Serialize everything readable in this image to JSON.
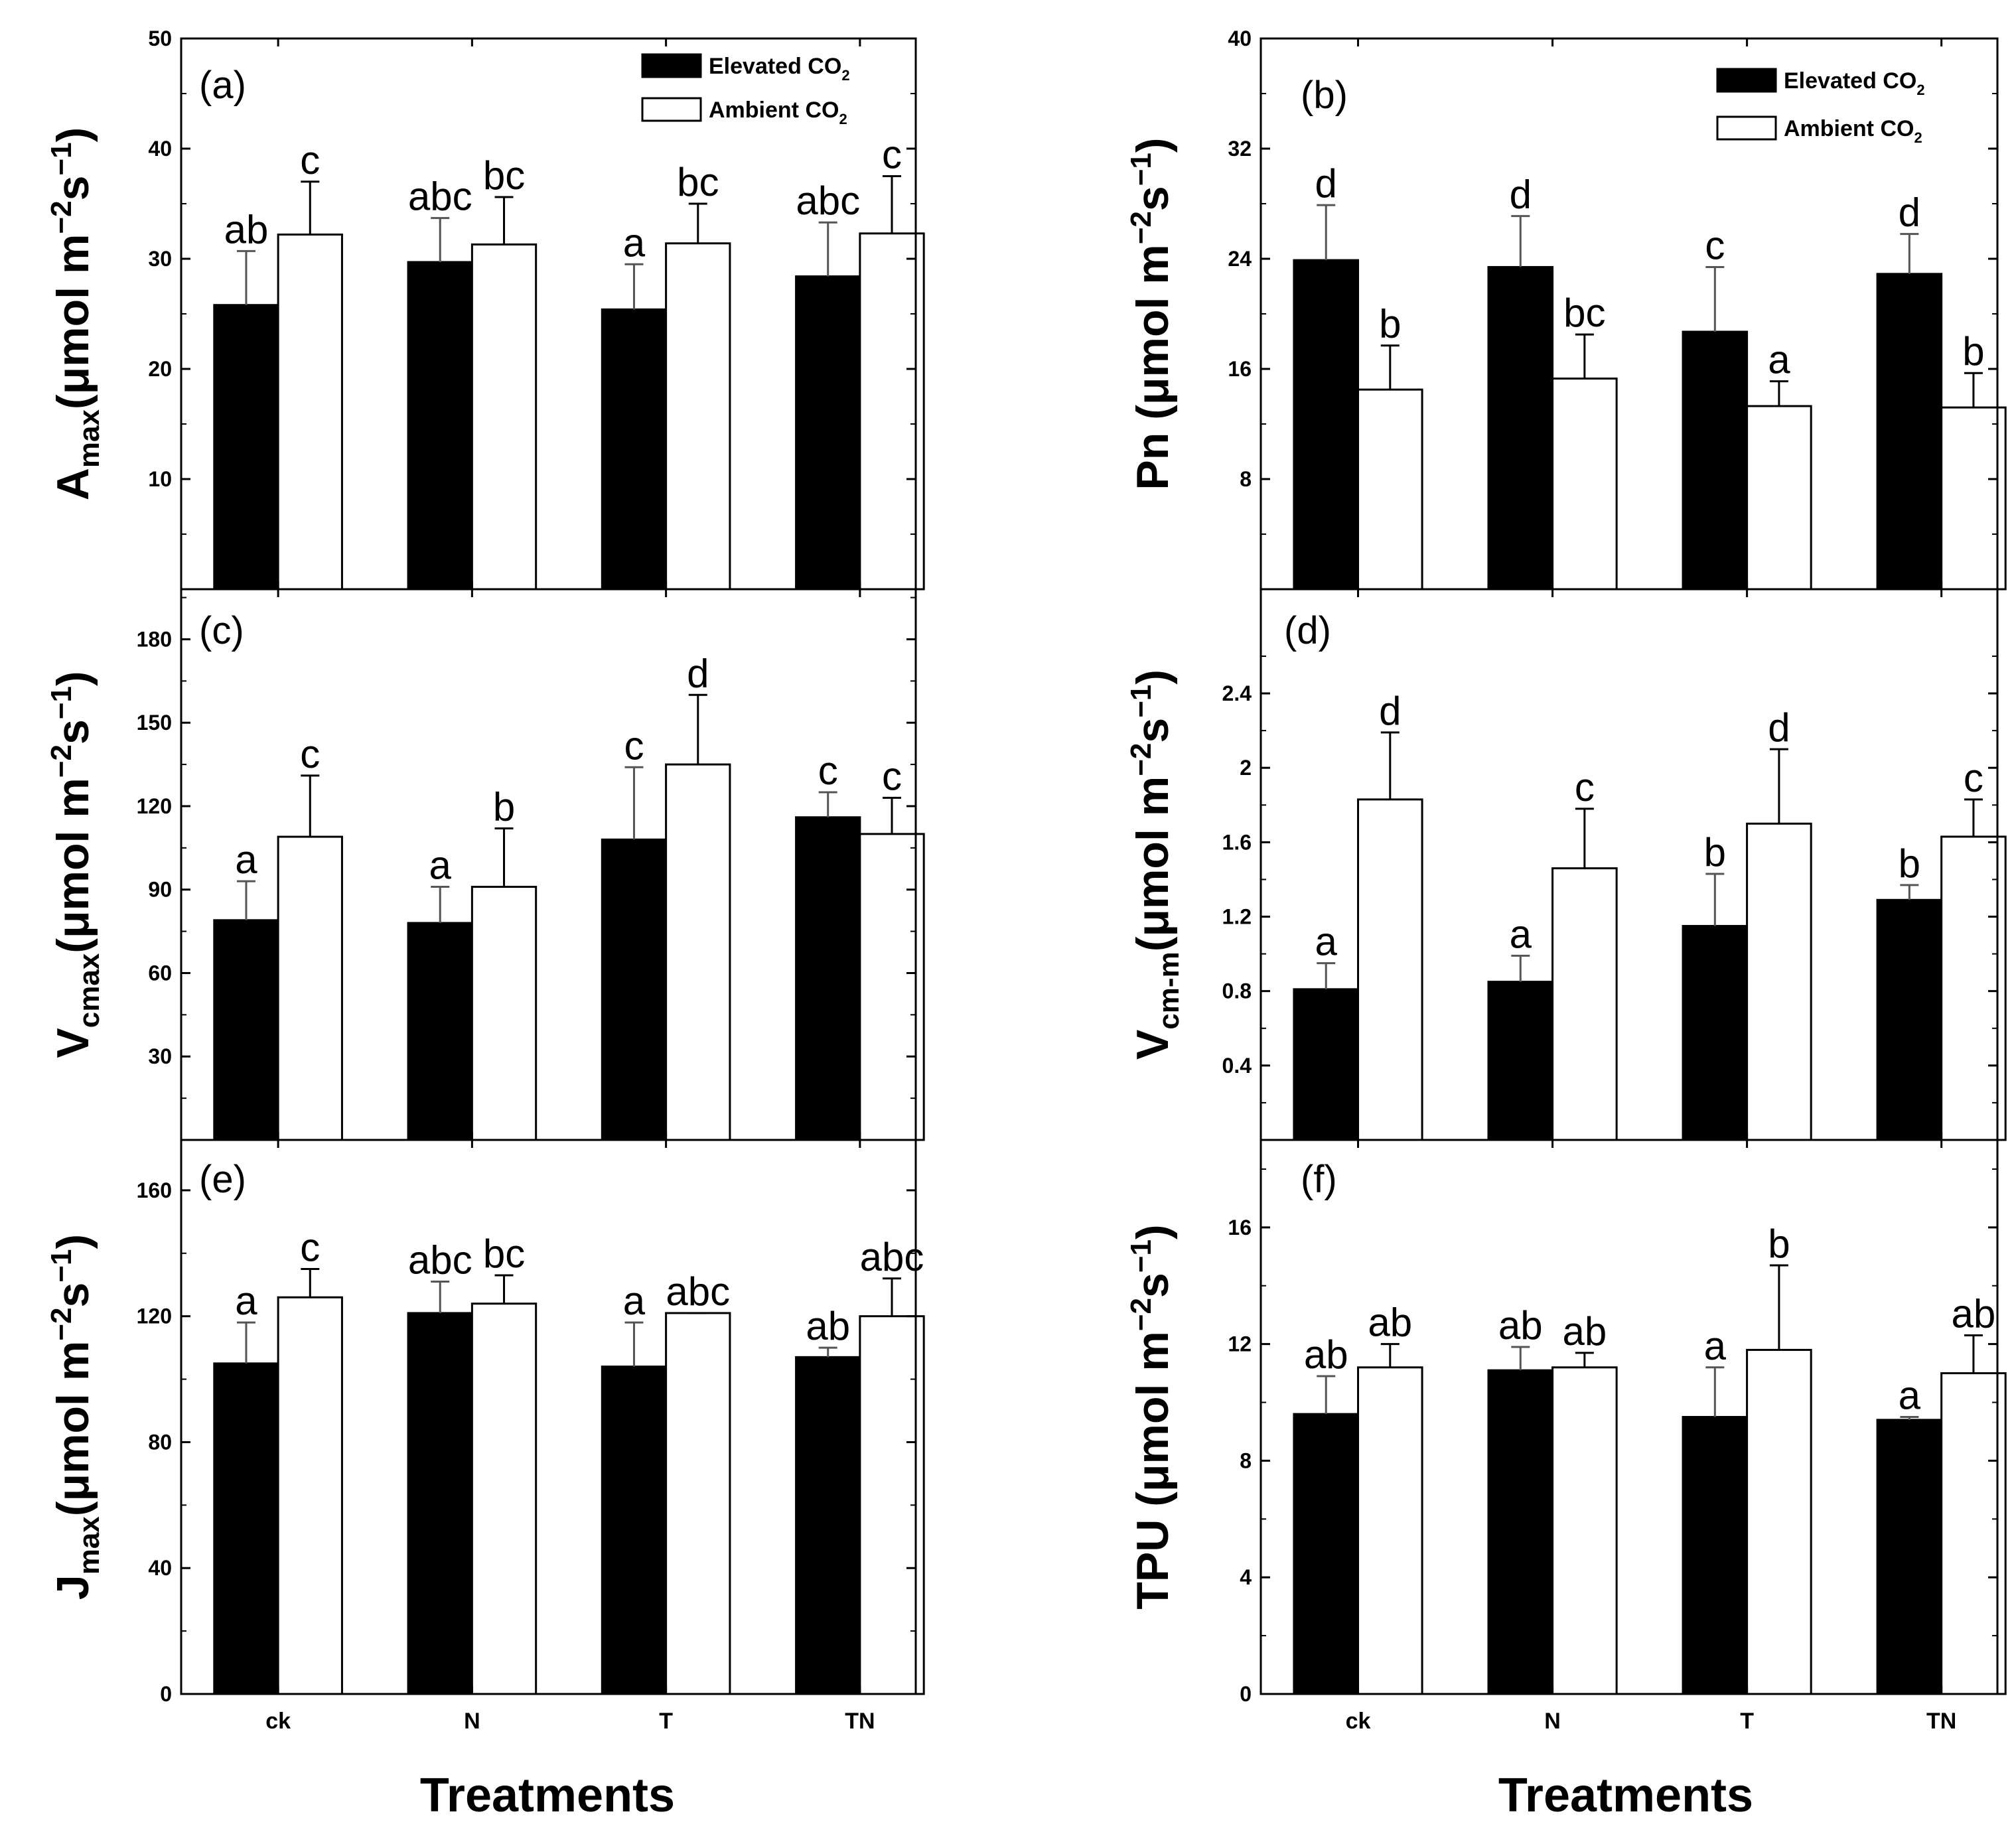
{
  "figure": {
    "x_title": "Treatments",
    "categories": [
      "ck",
      "N",
      "T",
      "TN"
    ]
  },
  "legend": {
    "elevated": {
      "label": "Elevated CO",
      "sub": "2"
    },
    "ambient": {
      "label": "Ambient CO",
      "sub": "2"
    }
  },
  "colors": {
    "elevated": "#000000",
    "ambient": "#ffffff",
    "axis": "#000000"
  },
  "chart_data": [
    {
      "id": "a",
      "type": "bar",
      "panel_label": "(a)",
      "ylabel": {
        "main": "A",
        "sub": "max",
        "unit": "(μmol m",
        "exp1": "−2",
        "mid": "s",
        "exp2": "−1",
        "close": ")"
      },
      "ylim": [
        0,
        50
      ],
      "yticks": [
        10,
        20,
        30,
        40,
        50
      ],
      "categories": [
        "ck",
        "N",
        "T",
        "TN"
      ],
      "series": [
        {
          "name": "Elevated CO2",
          "values": [
            25.8,
            29.7,
            25.4,
            28.4
          ],
          "errors": [
            4.9,
            4.0,
            4.1,
            4.9
          ],
          "letters": [
            "ab",
            "abc",
            "a",
            "abc"
          ]
        },
        {
          "name": "Ambient CO2",
          "values": [
            32.2,
            31.3,
            31.4,
            32.3
          ],
          "errors": [
            4.8,
            4.3,
            3.6,
            5.2
          ],
          "letters": [
            "c",
            "bc",
            "bc",
            "c"
          ]
        }
      ]
    },
    {
      "id": "b",
      "type": "bar",
      "panel_label": "(b)",
      "ylabel": {
        "main": "Pn",
        "sub": "",
        "unit": " (μmol m",
        "exp1": "−2",
        "mid": "s",
        "exp2": "−1",
        "close": ")"
      },
      "ylim": [
        0,
        40
      ],
      "yticks": [
        8,
        16,
        24,
        32,
        40
      ],
      "categories": [
        "ck",
        "N",
        "T",
        "TN"
      ],
      "series": [
        {
          "name": "Elevated CO2",
          "values": [
            23.9,
            23.4,
            18.7,
            22.9
          ],
          "errors": [
            4.0,
            3.7,
            4.7,
            2.9
          ],
          "letters": [
            "d",
            "d",
            "c",
            "d"
          ]
        },
        {
          "name": "Ambient CO2",
          "values": [
            14.5,
            15.3,
            13.3,
            13.2
          ],
          "errors": [
            3.2,
            3.2,
            1.8,
            2.5
          ],
          "letters": [
            "b",
            "bc",
            "a",
            "b"
          ]
        }
      ]
    },
    {
      "id": "c",
      "type": "bar",
      "panel_label": "(c)",
      "ylabel": {
        "main": "V",
        "sub": "cmax",
        "unit": "(μmol m",
        "exp1": "−2",
        "mid": "s",
        "exp2": "−1",
        "close": ")"
      },
      "ylim": [
        0,
        198
      ],
      "yticks": [
        30,
        60,
        90,
        120,
        150,
        180
      ],
      "categories": [
        "ck",
        "N",
        "T",
        "TN"
      ],
      "series": [
        {
          "name": "Elevated CO2",
          "values": [
            79,
            78,
            108,
            116
          ],
          "errors": [
            14,
            13,
            26,
            9
          ],
          "letters": [
            "a",
            "a",
            "c",
            "c"
          ]
        },
        {
          "name": "Ambient CO2",
          "values": [
            109,
            91,
            135,
            110
          ],
          "errors": [
            22,
            21,
            25,
            13
          ],
          "letters": [
            "c",
            "b",
            "d",
            "c"
          ]
        }
      ]
    },
    {
      "id": "d",
      "type": "bar",
      "panel_label": "(d)",
      "ylabel": {
        "main": "V",
        "sub": "cm-m",
        "unit": "(μmol m",
        "exp1": "−2",
        "mid": "s",
        "exp2": "−1",
        "close": ")"
      },
      "ylim": [
        0,
        2.96
      ],
      "yticks": [
        0.4,
        0.8,
        1.2,
        1.6,
        2.0,
        2.4
      ],
      "categories": [
        "ck",
        "N",
        "T",
        "TN"
      ],
      "series": [
        {
          "name": "Elevated CO2",
          "values": [
            0.81,
            0.85,
            1.15,
            1.29
          ],
          "errors": [
            0.14,
            0.14,
            0.28,
            0.08
          ],
          "letters": [
            "a",
            "a",
            "b",
            "b"
          ]
        },
        {
          "name": "Ambient CO2",
          "values": [
            1.83,
            1.46,
            1.7,
            1.63
          ],
          "errors": [
            0.36,
            0.32,
            0.4,
            0.2
          ],
          "letters": [
            "d",
            "c",
            "d",
            "c"
          ]
        }
      ]
    },
    {
      "id": "e",
      "type": "bar",
      "panel_label": "(e)",
      "ylabel": {
        "main": "J",
        "sub": "max",
        "unit": "(μmol m",
        "exp1": "−2",
        "mid": "s",
        "exp2": "−1",
        "close": ")"
      },
      "ylim": [
        0,
        176
      ],
      "yticks": [
        0,
        40,
        80,
        120,
        160
      ],
      "categories": [
        "ck",
        "N",
        "T",
        "TN"
      ],
      "series": [
        {
          "name": "Elevated CO2",
          "values": [
            105,
            121,
            104,
            107
          ],
          "errors": [
            13,
            10,
            14,
            3
          ],
          "letters": [
            "a",
            "abc",
            "a",
            "ab"
          ]
        },
        {
          "name": "Ambient CO2",
          "values": [
            126,
            124,
            121,
            120
          ],
          "errors": [
            9,
            9,
            0,
            12
          ],
          "letters": [
            "c",
            "bc",
            "abc",
            "abc"
          ]
        }
      ]
    },
    {
      "id": "f",
      "type": "bar",
      "panel_label": "(f)",
      "ylabel": {
        "main": "TPU",
        "sub": "",
        "unit": " (μmol m",
        "exp1": "−2",
        "mid": "s",
        "exp2": "−1",
        "close": ")"
      },
      "ylim": [
        0,
        19
      ],
      "yticks": [
        0,
        4,
        8,
        12,
        16
      ],
      "categories": [
        "ck",
        "N",
        "T",
        "TN"
      ],
      "series": [
        {
          "name": "Elevated CO2",
          "values": [
            9.6,
            11.1,
            9.5,
            9.4
          ],
          "errors": [
            1.3,
            0.8,
            1.7,
            0.1
          ],
          "letters": [
            "ab",
            "ab",
            "a",
            "a"
          ]
        },
        {
          "name": "Ambient CO2",
          "values": [
            11.2,
            11.2,
            11.8,
            11.0
          ],
          "errors": [
            0.8,
            0.5,
            2.9,
            1.3
          ],
          "letters": [
            "ab",
            "ab",
            "b",
            "ab"
          ]
        }
      ]
    }
  ]
}
